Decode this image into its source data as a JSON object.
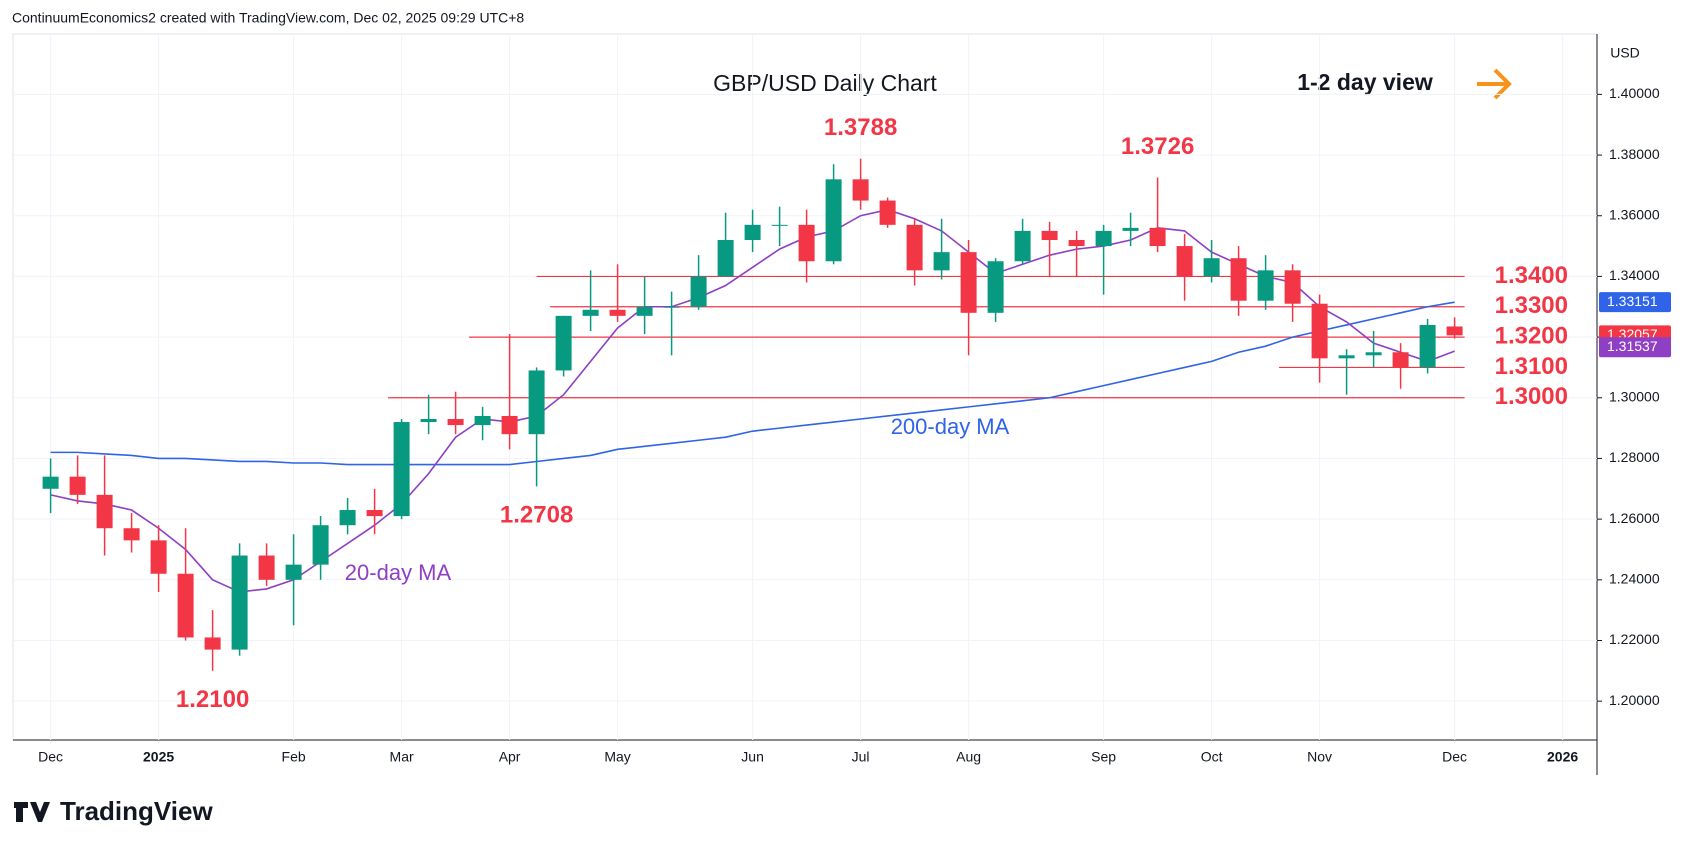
{
  "header": "ContinuumEconomics2 created with TradingView.com, Dec 02, 2025 09:29 UTC+8",
  "footer": "TradingView",
  "chart_data": {
    "type": "candlestick",
    "title": "GBP/USD Daily Chart",
    "subtitle": "1-2 day view",
    "currency": "USD",
    "categories": [
      "Dec",
      null,
      null,
      null,
      "2025",
      null,
      null,
      null,
      null,
      "Feb",
      null,
      null,
      null,
      "Mar",
      null,
      null,
      null,
      "Apr",
      null,
      null,
      null,
      "May",
      null,
      null,
      null,
      null,
      "Jun",
      null,
      null,
      null,
      "Jul",
      null,
      null,
      null,
      "Aug",
      null,
      null,
      null,
      null,
      "Sep",
      null,
      null,
      null,
      "Oct",
      null,
      null,
      null,
      "Nov",
      null,
      null,
      null,
      null,
      "Dec",
      null,
      null,
      null,
      "2026"
    ],
    "open": [
      1.27,
      1.274,
      1.268,
      1.257,
      1.253,
      1.242,
      1.221,
      1.217,
      1.248,
      1.24,
      1.245,
      1.258,
      1.263,
      1.261,
      1.292,
      1.293,
      1.291,
      1.294,
      1.288,
      1.309,
      1.327,
      1.329,
      1.327,
      1.33,
      1.33,
      1.34,
      1.352,
      1.357,
      1.357,
      1.345,
      1.372,
      1.365,
      1.357,
      1.342,
      1.348,
      1.328,
      1.345,
      1.355,
      1.352,
      1.35,
      1.355,
      1.356,
      1.35,
      1.34,
      1.346,
      1.332,
      1.342,
      1.331,
      1.313,
      1.314,
      1.315,
      1.31,
      1.3235,
      null,
      null,
      null,
      null
    ],
    "high": [
      1.28,
      1.281,
      1.281,
      1.262,
      1.258,
      1.257,
      1.23,
      1.252,
      1.252,
      1.255,
      1.261,
      1.267,
      1.27,
      1.293,
      1.301,
      1.302,
      1.297,
      1.321,
      1.31,
      1.327,
      1.342,
      1.344,
      1.34,
      1.335,
      1.347,
      1.361,
      1.362,
      1.363,
      1.362,
      1.377,
      1.3788,
      1.366,
      1.359,
      1.359,
      1.352,
      1.346,
      1.359,
      1.358,
      1.355,
      1.357,
      1.361,
      1.3726,
      1.354,
      1.352,
      1.35,
      1.347,
      1.344,
      1.334,
      1.316,
      1.322,
      1.318,
      1.326,
      1.3265,
      null,
      null,
      null,
      null
    ],
    "low": [
      1.262,
      1.265,
      1.248,
      1.249,
      1.236,
      1.22,
      1.21,
      1.215,
      1.238,
      1.225,
      1.24,
      1.255,
      1.255,
      1.26,
      1.288,
      1.288,
      1.286,
      1.283,
      1.2708,
      1.307,
      1.322,
      1.325,
      1.321,
      1.314,
      1.329,
      1.34,
      1.348,
      1.35,
      1.338,
      1.344,
      1.362,
      1.356,
      1.337,
      1.339,
      1.314,
      1.325,
      1.344,
      1.34,
      1.34,
      1.334,
      1.35,
      1.348,
      1.332,
      1.338,
      1.327,
      1.329,
      1.325,
      1.305,
      1.301,
      1.31,
      1.303,
      1.308,
      1.3195,
      null,
      null,
      null,
      null
    ],
    "close": [
      1.274,
      1.268,
      1.257,
      1.253,
      1.242,
      1.221,
      1.217,
      1.248,
      1.24,
      1.245,
      1.258,
      1.263,
      1.261,
      1.292,
      1.293,
      1.291,
      1.294,
      1.288,
      1.309,
      1.327,
      1.329,
      1.327,
      1.33,
      1.33,
      1.34,
      1.352,
      1.357,
      1.357,
      1.345,
      1.372,
      1.365,
      1.357,
      1.342,
      1.348,
      1.328,
      1.345,
      1.355,
      1.352,
      1.35,
      1.355,
      1.356,
      1.35,
      1.34,
      1.346,
      1.332,
      1.342,
      1.331,
      1.313,
      1.314,
      1.315,
      1.31,
      1.324,
      1.32057,
      null,
      null,
      null,
      null
    ],
    "up_color": "#089981",
    "down_color": "#f23645",
    "last_label": "1.32057",
    "series": [
      {
        "name": "200-day MA",
        "color": "#2f63e8",
        "last_label": "1.33151",
        "values": [
          1.282,
          1.282,
          1.2815,
          1.281,
          1.28,
          1.28,
          1.2795,
          1.279,
          1.279,
          1.2785,
          1.2785,
          1.278,
          1.278,
          1.278,
          1.278,
          1.278,
          1.278,
          1.278,
          1.279,
          1.28,
          1.281,
          1.283,
          1.284,
          1.285,
          1.286,
          1.287,
          1.289,
          1.29,
          1.291,
          1.292,
          1.293,
          1.294,
          1.295,
          1.296,
          1.297,
          1.298,
          1.299,
          1.3,
          1.302,
          1.304,
          1.306,
          1.308,
          1.31,
          1.312,
          1.315,
          1.317,
          1.32,
          1.322,
          1.324,
          1.326,
          1.328,
          1.33,
          1.33151,
          null,
          null,
          null,
          null
        ]
      },
      {
        "name": "20-day MA",
        "color": "#8e3fc4",
        "last_label": "1.31537",
        "values": [
          1.268,
          1.266,
          1.265,
          1.263,
          1.257,
          1.25,
          1.24,
          1.236,
          1.237,
          1.24,
          1.246,
          1.252,
          1.258,
          1.265,
          1.275,
          1.287,
          1.293,
          1.292,
          1.294,
          1.301,
          1.312,
          1.323,
          1.33,
          1.33,
          1.333,
          1.337,
          1.343,
          1.349,
          1.353,
          1.355,
          1.36,
          1.362,
          1.359,
          1.355,
          1.348,
          1.341,
          1.344,
          1.347,
          1.349,
          1.35,
          1.352,
          1.356,
          1.355,
          1.348,
          1.344,
          1.34,
          1.338,
          1.33,
          1.325,
          1.318,
          1.315,
          1.312,
          1.31537,
          null,
          null,
          null,
          null
        ]
      }
    ],
    "levels": [
      {
        "value": 1.34,
        "label": "1.3400"
      },
      {
        "value": 1.33,
        "label": "1.3300"
      },
      {
        "value": 1.32,
        "label": "1.3200"
      },
      {
        "value": 1.31,
        "label": "1.3100"
      },
      {
        "value": 1.3,
        "label": "1.3000"
      }
    ],
    "annotations": [
      {
        "value": 1.3788,
        "label": "1.3788"
      },
      {
        "value": 1.3726,
        "label": "1.3726"
      },
      {
        "value": 1.2708,
        "label": "1.2708"
      },
      {
        "value": 1.21,
        "label": "1.2100"
      }
    ],
    "ylim": [
      1.1872,
      1.4199
    ],
    "yticks": [
      {
        "value": 1.2,
        "label": "1.20000"
      },
      {
        "value": 1.22,
        "label": "1.22000"
      },
      {
        "value": 1.24,
        "label": "1.24000"
      },
      {
        "value": 1.26,
        "label": "1.26000"
      },
      {
        "value": 1.28,
        "label": "1.28000"
      },
      {
        "value": 1.3,
        "label": "1.30000"
      },
      {
        "value": 1.32,
        "label": "1.32000"
      },
      {
        "value": 1.34,
        "label": "1.34000"
      },
      {
        "value": 1.36,
        "label": "1.36000"
      },
      {
        "value": 1.38,
        "label": "1.38000"
      },
      {
        "value": 1.4,
        "label": "1.40000"
      }
    ],
    "grid": true
  }
}
